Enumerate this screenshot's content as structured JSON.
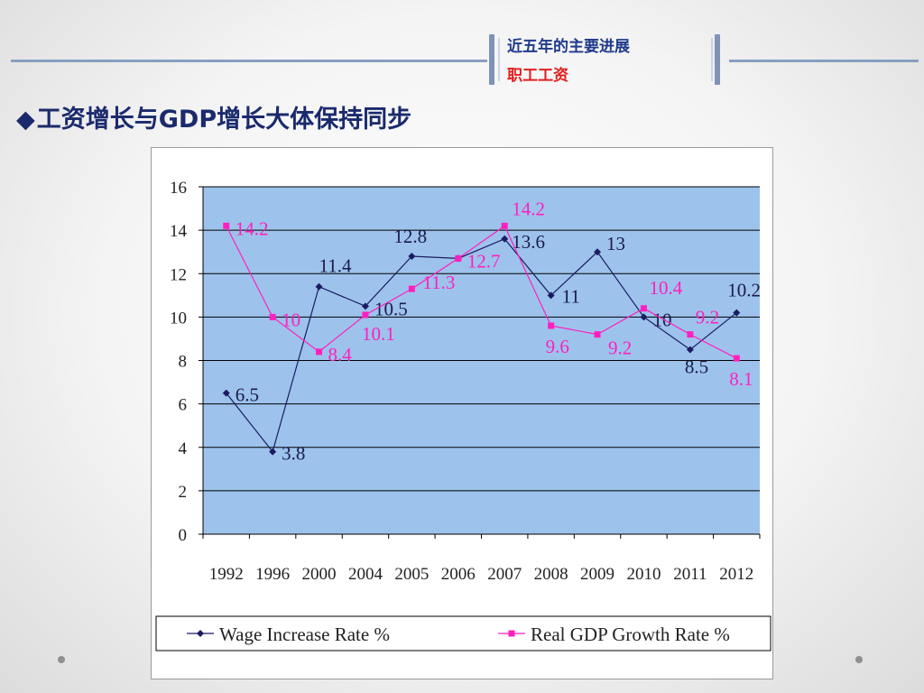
{
  "slide": {
    "section_title": "近五年的主要进展",
    "section_subtitle": "职工工资",
    "headline_bullet": "◆",
    "headline": "工资增长与GDP增长大体保持同步"
  },
  "colors": {
    "header_blue": "#1f3a8c",
    "subtitle_red": "#e0201f",
    "plot_area": "#9dc3ec",
    "wage_series": "#1b1b63",
    "gdp_series": "#ff1fbf"
  },
  "chart_data": {
    "type": "line",
    "title": "",
    "xlabel": "",
    "ylabel": "",
    "categories": [
      "1992",
      "1996",
      "2000",
      "2004",
      "2005",
      "2006",
      "2007",
      "2008",
      "2009",
      "2010",
      "2011",
      "2012"
    ],
    "ylim": [
      0,
      16
    ],
    "yticks": [
      "0",
      "2",
      "4",
      "6",
      "8",
      "10",
      "12",
      "14",
      "16"
    ],
    "grid": "horizontal",
    "legend_position": "bottom",
    "series": [
      {
        "name": "Wage Increase Rate %",
        "color": "#1b1b63",
        "marker": "diamond",
        "values": [
          6.5,
          3.8,
          11.4,
          10.5,
          12.8,
          12.7,
          13.6,
          11,
          13,
          10,
          8.5,
          10.2
        ],
        "labels": [
          "6.5",
          "3.8",
          "11.4",
          "10.5",
          "12.8",
          "",
          "13.6",
          "11",
          "13",
          "10",
          "8.5",
          "10.2"
        ]
      },
      {
        "name": "Real GDP Growth Rate %",
        "color": "#ff1fbf",
        "marker": "square",
        "values": [
          14.2,
          10,
          8.4,
          10.1,
          11.3,
          12.7,
          14.2,
          9.6,
          9.2,
          10.4,
          9.2,
          8.1
        ],
        "labels": [
          "14.2",
          "10",
          "8.4",
          "10.1",
          "11.3",
          "12.7",
          "14.2",
          "9.6",
          "9.2",
          "10.4",
          "9.2",
          "8.1"
        ]
      }
    ]
  }
}
